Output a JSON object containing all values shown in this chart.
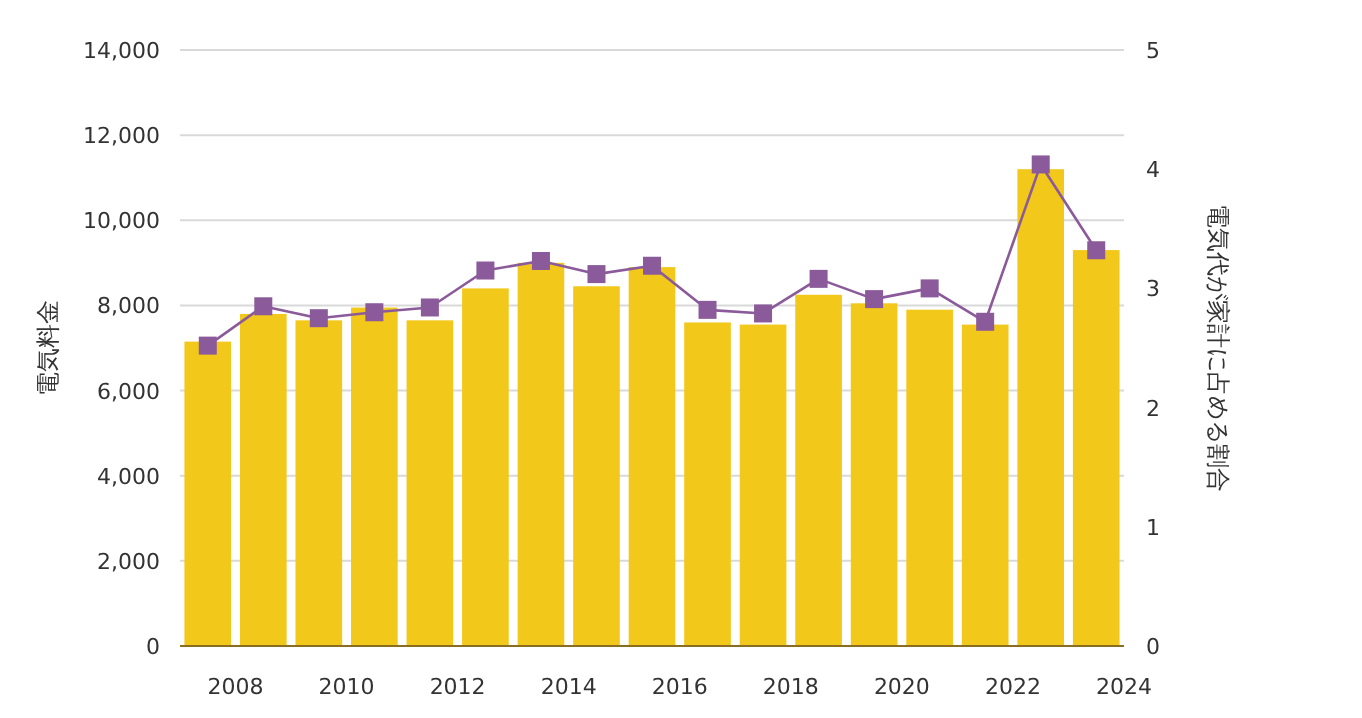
{
  "chart_data": {
    "type": "bar",
    "ylabel": "電気料金",
    "y2label": "電気代が家計に占める割合",
    "x": [
      2007.5,
      2008.5,
      2009.5,
      2010.5,
      2011.5,
      2012.5,
      2013.5,
      2014.5,
      2015.5,
      2016.5,
      2017.5,
      2018.5,
      2019.5,
      2020.5,
      2021.5,
      2022.5,
      2023.5
    ],
    "xlim": [
      2007,
      2024
    ],
    "xticks": [
      2008,
      2010,
      2012,
      2014,
      2016,
      2018,
      2020,
      2022,
      2024
    ],
    "ylim": [
      0,
      14000
    ],
    "yticks": [
      0,
      {
        "value": 2000,
        "label": "2,000"
      },
      {
        "value": 4000,
        "label": "4,000"
      },
      {
        "value": 6000,
        "label": "6,000"
      },
      {
        "value": 8000,
        "label": "8,000"
      },
      {
        "value": 10000,
        "label": "10,000"
      },
      {
        "value": 12000,
        "label": "12,000"
      },
      {
        "value": 14000,
        "label": "14,000"
      }
    ],
    "y2lim": [
      0,
      5
    ],
    "y2ticks": [
      0,
      1,
      2,
      3,
      4,
      5
    ],
    "grid": "y",
    "series": [
      {
        "color": "#f2c81a",
        "values": [
          7150,
          7800,
          7650,
          7950,
          7650,
          8400,
          9000,
          8450,
          8900,
          7600,
          7550,
          8250,
          8050,
          7900,
          7550,
          11200,
          9300
        ]
      },
      {
        "type": "line",
        "axis": "y2",
        "color": "#8b5a9a",
        "marker": "square",
        "values": [
          2.52,
          2.85,
          2.75,
          2.8,
          2.84,
          3.15,
          3.23,
          3.12,
          3.19,
          2.82,
          2.79,
          3.08,
          2.91,
          3.0,
          2.72,
          4.04,
          3.32
        ]
      }
    ]
  }
}
